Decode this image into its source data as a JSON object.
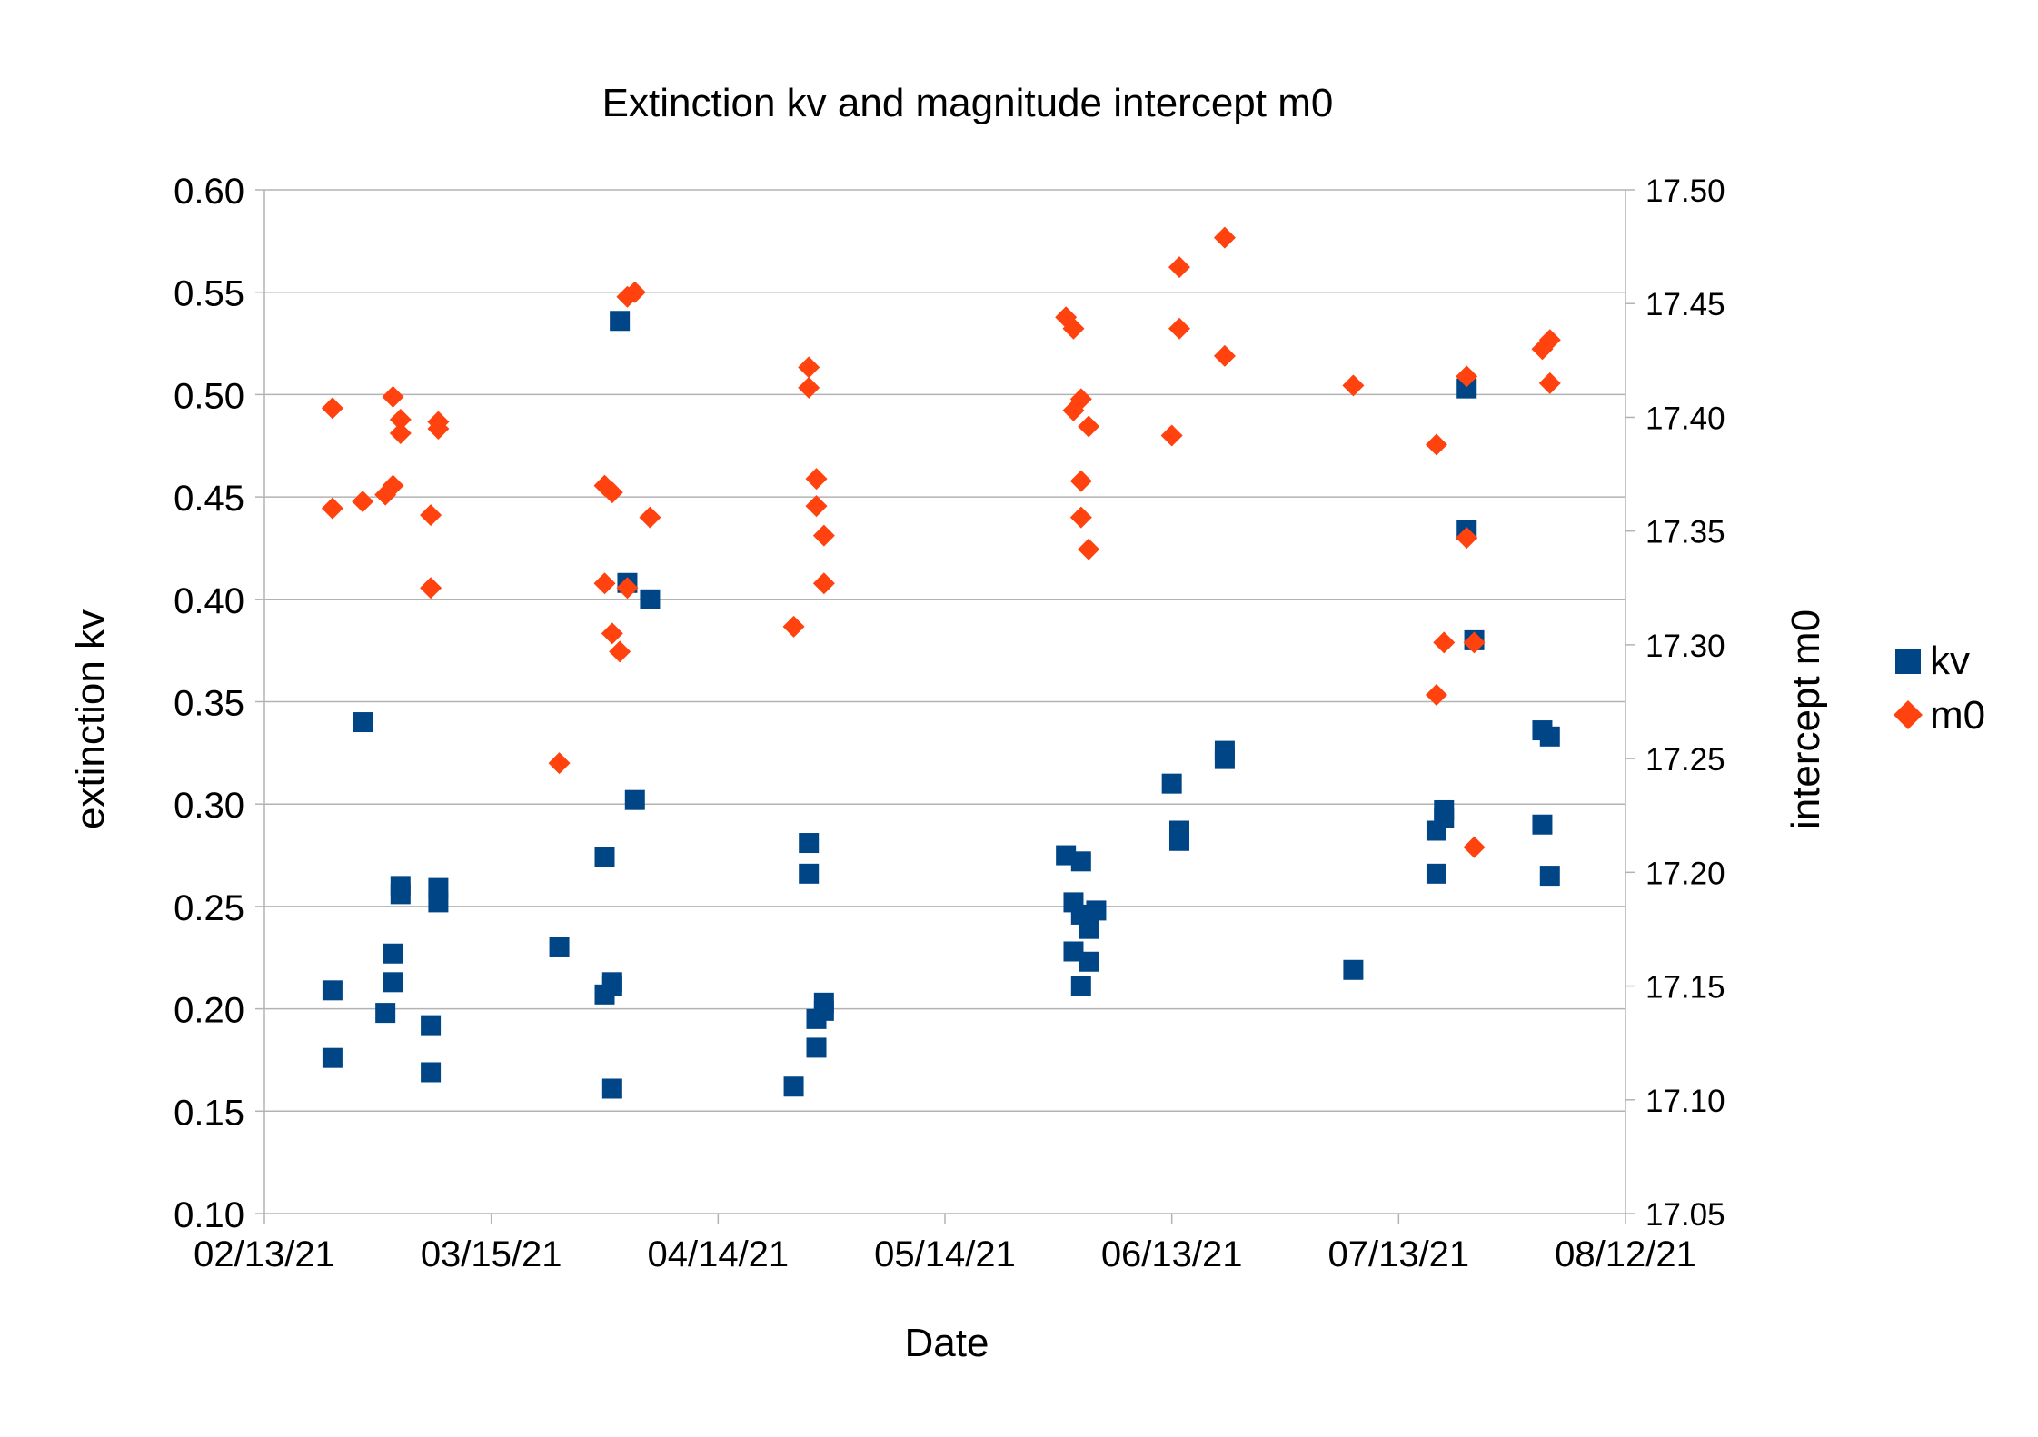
{
  "chart_data": {
    "type": "scatter",
    "title": "Extinction kv and magnitude intercept m0",
    "xlabel": "Date",
    "ylabel": "extinction kv",
    "y2label": "intercept m0",
    "grid": true,
    "legend_position": "right",
    "x_ticks": [
      "02/13/21",
      "03/15/21",
      "04/14/21",
      "05/14/21",
      "06/13/21",
      "07/13/21",
      "08/12/21"
    ],
    "xlim": [
      0,
      180
    ],
    "ylim": [
      0.1,
      0.6
    ],
    "y_ticks": [
      "0.10",
      "0.15",
      "0.20",
      "0.25",
      "0.30",
      "0.35",
      "0.40",
      "0.45",
      "0.50",
      "0.55",
      "0.60"
    ],
    "y2lim": [
      17.05,
      17.5
    ],
    "y2_ticks": [
      "17.05",
      "17.10",
      "17.15",
      "17.20",
      "17.25",
      "17.30",
      "17.35",
      "17.40",
      "17.45",
      "17.50"
    ],
    "series": [
      {
        "name": "kv",
        "axis": "left",
        "color": "#004586",
        "marker": "square",
        "x": [
          9,
          9,
          13,
          16,
          17,
          17,
          18,
          18,
          22,
          22,
          23,
          23,
          39,
          45,
          45,
          46,
          46,
          46,
          47,
          48,
          49,
          51,
          70,
          72,
          72,
          73,
          73,
          74,
          74,
          106,
          107,
          107,
          108,
          108,
          108,
          109,
          109,
          110,
          120,
          121,
          121,
          127,
          127,
          144,
          155,
          155,
          156,
          156,
          159,
          159,
          160,
          169,
          169,
          170,
          170
        ],
        "values": [
          0.209,
          0.176,
          0.34,
          0.198,
          0.227,
          0.213,
          0.26,
          0.256,
          0.192,
          0.169,
          0.259,
          0.252,
          0.23,
          0.274,
          0.207,
          0.213,
          0.161,
          0.211,
          0.536,
          0.408,
          0.302,
          0.4,
          0.162,
          0.281,
          0.266,
          0.181,
          0.195,
          0.199,
          0.203,
          0.275,
          0.228,
          0.252,
          0.246,
          0.272,
          0.211,
          0.223,
          0.239,
          0.248,
          0.31,
          0.287,
          0.282,
          0.322,
          0.326,
          0.219,
          0.266,
          0.287,
          0.293,
          0.297,
          0.503,
          0.434,
          0.38,
          0.29,
          0.336,
          0.265,
          0.333
        ],
        "x_raw_note": ""
      },
      {
        "name": "m0",
        "axis": "right",
        "color": "#ff420e",
        "marker": "diamond",
        "x": [
          9,
          9,
          13,
          16,
          17,
          17,
          18,
          18,
          22,
          22,
          23,
          23,
          39,
          45,
          45,
          46,
          46,
          47,
          48,
          48,
          49,
          51,
          70,
          72,
          72,
          73,
          73,
          74,
          74,
          106,
          107,
          107,
          108,
          108,
          108,
          109,
          109,
          120,
          121,
          121,
          127,
          127,
          144,
          155,
          155,
          156,
          159,
          159,
          160,
          160,
          169,
          170,
          170
        ],
        "values": [
          17.404,
          17.36,
          17.363,
          17.366,
          17.37,
          17.409,
          17.399,
          17.393,
          17.357,
          17.325,
          17.398,
          17.395,
          17.248,
          17.37,
          17.327,
          17.367,
          17.305,
          17.297,
          17.453,
          17.325,
          17.455,
          17.356,
          17.308,
          17.422,
          17.413,
          17.373,
          17.361,
          17.348,
          17.327,
          17.444,
          17.439,
          17.403,
          17.408,
          17.372,
          17.356,
          17.342,
          17.396,
          17.392,
          17.466,
          17.439,
          17.479,
          17.427,
          17.414,
          17.278,
          17.388,
          17.301,
          17.347,
          17.418,
          17.301,
          17.211,
          17.43,
          17.415,
          17.434
        ]
      }
    ]
  }
}
